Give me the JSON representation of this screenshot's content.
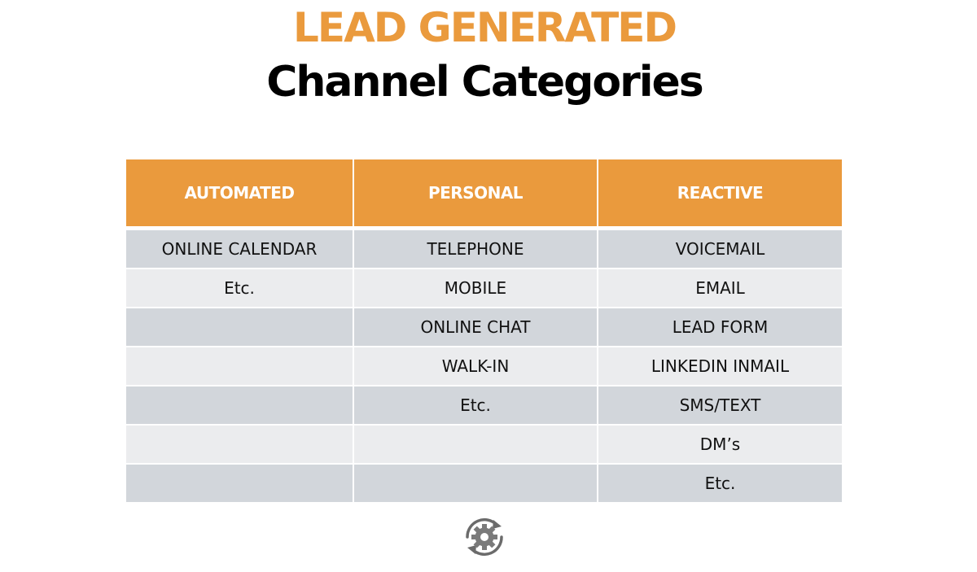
{
  "title": {
    "line1": "LEAD GENERATED",
    "line2": "Channel Categories"
  },
  "colors": {
    "accent": "#ea9a3d",
    "row_dark": "#d2d6db",
    "row_light": "#ebecee"
  },
  "table": {
    "headers": [
      "AUTOMATED",
      "PERSONAL",
      "REACTIVE"
    ],
    "rows": [
      [
        "ONLINE CALENDAR",
        "TELEPHONE",
        "VOICEMAIL"
      ],
      [
        "Etc.",
        "MOBILE",
        "EMAIL"
      ],
      [
        "",
        "ONLINE CHAT",
        "LEAD FORM"
      ],
      [
        "",
        "WALK-IN",
        "LINKEDIN INMAIL"
      ],
      [
        "",
        "Etc.",
        "SMS/TEXT"
      ],
      [
        "",
        "",
        "DM’s"
      ],
      [
        "",
        "",
        "Etc."
      ]
    ]
  },
  "icon": "gear-cycle-icon"
}
